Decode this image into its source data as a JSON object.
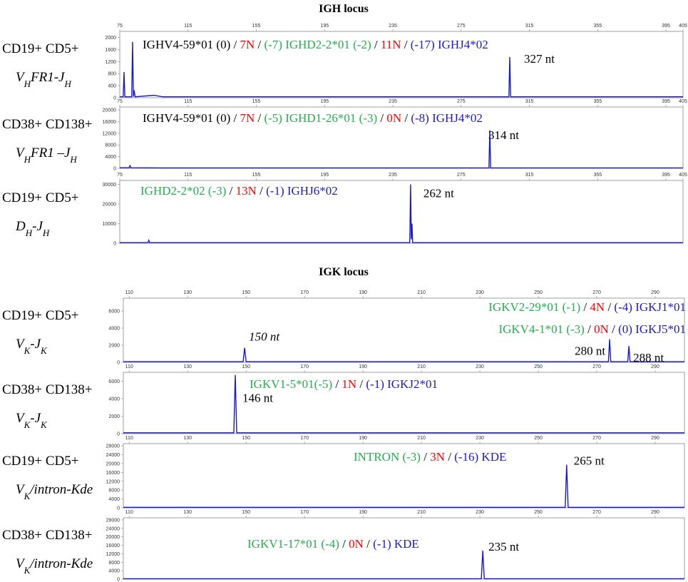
{
  "chart_data": [
    {
      "type": "line",
      "title": "IGH locus",
      "labels": [
        "CD19+ CD5+",
        [
          {
            "text": "V"
          },
          {
            "text": "H",
            "sub": true
          },
          {
            "text": "FR1-J"
          },
          {
            "text": "H",
            "sub": true
          }
        ]
      ],
      "xlim": [
        75,
        405
      ],
      "xticks": [
        75,
        115,
        155,
        195,
        235,
        275,
        315,
        355,
        395,
        405
      ],
      "ylim": [
        0,
        2200
      ],
      "yticks": [
        0,
        400,
        800,
        1200,
        1600,
        2000
      ],
      "series": [
        {
          "color": "#1a1acc",
          "x": [
            75,
            77,
            77.5,
            78,
            82,
            82.5,
            83,
            83.4,
            84,
            95,
            100,
            303,
            303.5,
            304,
            405
          ],
          "values": [
            30,
            30,
            850,
            30,
            30,
            1850,
            30,
            250,
            30,
            80,
            30,
            30,
            1350,
            30,
            30
          ]
        }
      ],
      "sequence": [
        [
          {
            "text": "IGHV4-59*01 (0)",
            "color": "#000000"
          },
          {
            "text": " / ",
            "color": "#000000"
          },
          {
            "text": "7N",
            "color": "#ff0000"
          },
          {
            "text": " / ",
            "color": "#000000"
          },
          {
            "text": "(-7) IGHD2-2*01 (-2)",
            "color": "#22b14c"
          },
          {
            "text": " / ",
            "color": "#000000"
          },
          {
            "text": "11N",
            "color": "#ff0000"
          },
          {
            "text": " / ",
            "color": "#000000"
          },
          {
            "text": "(-17) IGHJ4*02",
            "color": "#1a1acc"
          }
        ]
      ],
      "annotations": [
        {
          "text": "327 nt",
          "x": 303.5
        }
      ]
    },
    {
      "type": "line",
      "labels": [
        "CD38+ CD138+",
        [
          {
            "text": "V"
          },
          {
            "text": "H",
            "sub": true
          },
          {
            "text": "FR1 –J"
          },
          {
            "text": "H",
            "sub": true
          }
        ]
      ],
      "xlim": [
        75,
        405
      ],
      "xticks": [
        75,
        115,
        155,
        195,
        235,
        275,
        315,
        355,
        395,
        405
      ],
      "ylim": [
        0,
        21000
      ],
      "yticks": [
        0,
        4000,
        8000,
        12000,
        16000,
        20000
      ],
      "series": [
        {
          "color": "#1a1acc",
          "x": [
            75,
            80.5,
            81,
            81.5,
            100,
            291.3,
            291.8,
            292.3,
            405
          ],
          "values": [
            200,
            200,
            900,
            200,
            150,
            150,
            13000,
            150,
            150
          ]
        }
      ],
      "sequence": [
        [
          {
            "text": "IGHV4-59*01 (0)",
            "color": "#000000"
          },
          {
            "text": " / ",
            "color": "#000000"
          },
          {
            "text": "7N",
            "color": "#ff0000"
          },
          {
            "text": " / ",
            "color": "#000000"
          },
          {
            "text": "(-5) IGHD1-26*01 (-3)",
            "color": "#22b14c"
          },
          {
            "text": " / ",
            "color": "#000000"
          },
          {
            "text": "0N",
            "color": "#ff0000"
          },
          {
            "text": " / ",
            "color": "#000000"
          },
          {
            "text": "(-8) IGHJ4*02",
            "color": "#1a1acc"
          }
        ]
      ],
      "annotations": [
        {
          "text": "314 nt",
          "x": 291.8
        }
      ]
    },
    {
      "type": "line",
      "labels": [
        "CD19+ CD5+",
        [
          {
            "text": "D"
          },
          {
            "text": "H",
            "sub": true
          },
          {
            "text": "-J"
          },
          {
            "text": "H",
            "sub": true
          }
        ]
      ],
      "xlim": [
        75,
        405
      ],
      "xticks": [
        75,
        115,
        155,
        195,
        235,
        275,
        315,
        355,
        395,
        405
      ],
      "ylim": [
        0,
        32000
      ],
      "yticks": [
        0,
        10000,
        20000,
        30000
      ],
      "series": [
        {
          "color": "#1a1acc",
          "x": [
            75,
            91.5,
            92,
            92.5,
            244.9,
            245.4,
            245.8,
            246.2,
            246.6,
            405
          ],
          "values": [
            300,
            300,
            1500,
            300,
            300,
            30000,
            2000,
            10000,
            300,
            300
          ]
        }
      ],
      "sequence": [
        [
          {
            "text": "IGHD2-2*02 (-3)",
            "color": "#22b14c"
          },
          {
            "text": " / ",
            "color": "#000000"
          },
          {
            "text": "13N",
            "color": "#ff0000"
          },
          {
            "text": " / ",
            "color": "#000000"
          },
          {
            "text": "(-1) IGHJ6*02",
            "color": "#1a1acc"
          }
        ]
      ],
      "annotations": [
        {
          "text": "262 nt",
          "x": 245.4
        }
      ]
    },
    {
      "type": "line",
      "title": "IGK locus",
      "labels": [
        "CD19+ CD5+",
        [
          {
            "text": "V"
          },
          {
            "text": "K",
            "sub": true
          },
          {
            "text": "-J"
          },
          {
            "text": "K",
            "sub": true
          }
        ]
      ],
      "xlim": [
        108,
        300
      ],
      "xticks": [
        110,
        130,
        150,
        170,
        190,
        210,
        230,
        250,
        270,
        290
      ],
      "ylim": [
        0,
        7500
      ],
      "yticks": [
        0,
        2000,
        4000,
        6000
      ],
      "series": [
        {
          "color": "#1a1acc",
          "x": [
            108,
            149,
            149.5,
            150,
            274,
            274.4,
            274.8,
            280.6,
            281,
            281.4,
            300
          ],
          "values": [
            80,
            80,
            1700,
            80,
            80,
            2700,
            80,
            80,
            1900,
            80,
            80
          ]
        }
      ],
      "sequence": [
        [
          {
            "text": "IGKV2-29*01 (-1)",
            "color": "#22b14c"
          },
          {
            "text": " / ",
            "color": "#000000"
          },
          {
            "text": "4N",
            "color": "#ff0000"
          },
          {
            "text": " / ",
            "color": "#000000"
          },
          {
            "text": "(-4) IGKJ1*01",
            "color": "#1a1acc"
          }
        ],
        [
          {
            "text": "IGKV4-1*01 (-3)",
            "color": "#22b14c"
          },
          {
            "text": " / ",
            "color": "#000000"
          },
          {
            "text": "0N",
            "color": "#ff0000"
          },
          {
            "text": " / ",
            "color": "#000000"
          },
          {
            "text": "(0) IGKJ5*01",
            "color": "#1a1acc"
          }
        ]
      ],
      "annotations": [
        {
          "text": "150 nt",
          "x": 149.5,
          "style": "italic"
        },
        {
          "text": "280 nt",
          "x": 274.4
        },
        {
          "text": "288 nt",
          "x": 281
        }
      ]
    },
    {
      "type": "line",
      "labels": [
        "CD38+ CD138+",
        [
          {
            "text": "V"
          },
          {
            "text": "K",
            "sub": true
          },
          {
            "text": "-J"
          },
          {
            "text": "K",
            "sub": true
          }
        ]
      ],
      "xlim": [
        108,
        300
      ],
      "xticks": [
        110,
        130,
        150,
        170,
        190,
        210,
        230,
        250,
        270,
        290
      ],
      "ylim": [
        0,
        7000
      ],
      "yticks": [
        0,
        2000,
        4000,
        6000
      ],
      "series": [
        {
          "color": "#1a1acc",
          "x": [
            108,
            145.8,
            146.3,
            146.8,
            300
          ],
          "values": [
            100,
            100,
            6700,
            100,
            100
          ]
        }
      ],
      "sequence": [
        [
          {
            "text": "IGKV1-5*01(-5)",
            "color": "#22b14c"
          },
          {
            "text": " / ",
            "color": "#000000"
          },
          {
            "text": "1N",
            "color": "#ff0000"
          },
          {
            "text": " / ",
            "color": "#000000"
          },
          {
            "text": "(-1) IGKJ2*01",
            "color": "#1a1acc"
          }
        ]
      ],
      "annotations": [
        {
          "text": "146 nt",
          "x": 146.3
        }
      ]
    },
    {
      "type": "line",
      "labels": [
        "CD19+ CD5+",
        [
          {
            "text": "V"
          },
          {
            "text": "K",
            "sub": true
          },
          {
            "text": "/intron-Kde"
          }
        ]
      ],
      "xlim": [
        108,
        300
      ],
      "xticks": [
        110,
        130,
        150,
        170,
        190,
        210,
        230,
        250,
        270,
        290
      ],
      "ylim": [
        0,
        29000
      ],
      "yticks": [
        0,
        4000,
        8000,
        12000,
        16000,
        20000,
        24000,
        28000
      ],
      "series": [
        {
          "color": "#1a1acc",
          "x": [
            108,
            259.2,
            259.7,
            260.2,
            300
          ],
          "values": [
            200,
            200,
            19500,
            200,
            200
          ]
        }
      ],
      "sequence": [
        [
          {
            "text": "INTRON (-3)",
            "color": "#22b14c"
          },
          {
            "text": " / ",
            "color": "#000000"
          },
          {
            "text": "3N",
            "color": "#ff0000"
          },
          {
            "text": " / ",
            "color": "#000000"
          },
          {
            "text": "(-16) KDE",
            "color": "#1a1acc"
          }
        ]
      ],
      "annotations": [
        {
          "text": "265 nt",
          "x": 259.7
        }
      ]
    },
    {
      "type": "line",
      "labels": [
        "CD38+ CD138+",
        [
          {
            "text": "V"
          },
          {
            "text": "K",
            "sub": true
          },
          {
            "text": "/intron-Kde"
          }
        ]
      ],
      "xlim": [
        108,
        300
      ],
      "xticks": [
        110,
        130,
        150,
        170,
        190,
        210,
        230,
        250,
        270,
        290
      ],
      "ylim": [
        0,
        29000
      ],
      "yticks": [
        0,
        4000,
        8000,
        12000,
        16000,
        20000,
        24000,
        28000
      ],
      "series": [
        {
          "color": "#1a1acc",
          "x": [
            108,
            230.5,
            231,
            231.5,
            300
          ],
          "values": [
            200,
            200,
            13500,
            200,
            200
          ]
        }
      ],
      "sequence": [
        [
          {
            "text": "IGKV1-17*01 (-4)",
            "color": "#22b14c"
          },
          {
            "text": " / ",
            "color": "#000000"
          },
          {
            "text": "0N",
            "color": "#ff0000"
          },
          {
            "text": " / ",
            "color": "#000000"
          },
          {
            "text": "(-1) KDE",
            "color": "#1a1acc"
          }
        ]
      ],
      "annotations": [
        {
          "text": "235 nt",
          "x": 231
        }
      ]
    }
  ]
}
